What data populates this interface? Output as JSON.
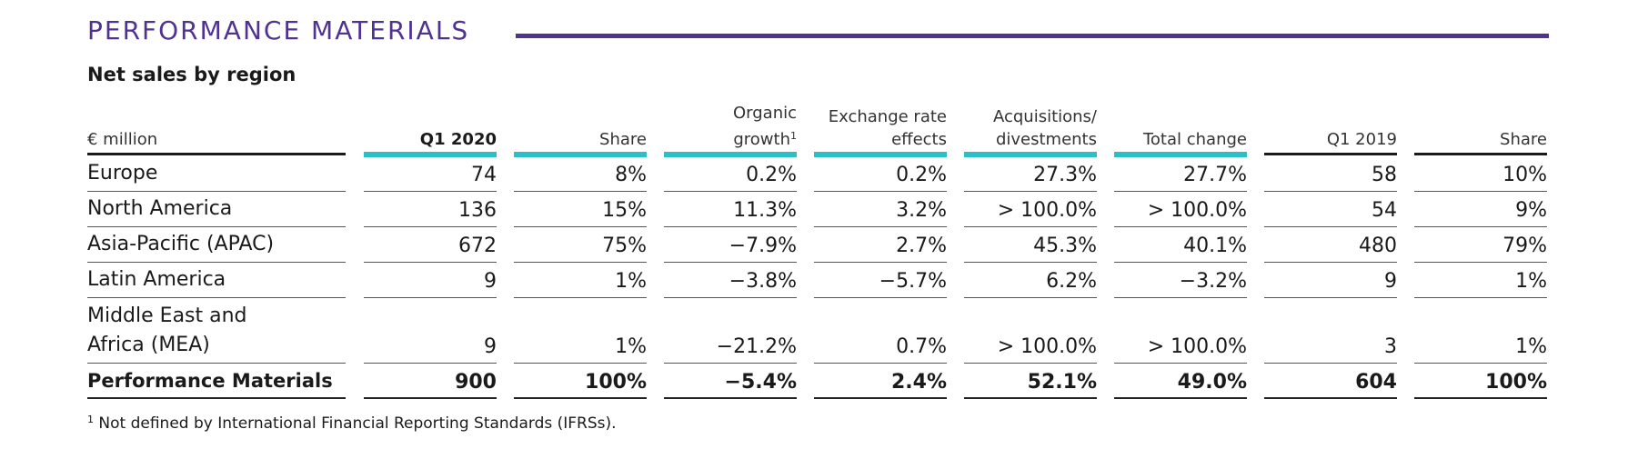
{
  "section_title": "PERFORMANCE MATERIALS",
  "subtitle": "Net sales by region",
  "columns": [
    {
      "lines": [
        "€ million"
      ],
      "sup": ""
    },
    {
      "lines": [
        "Q1 2020"
      ],
      "sup": ""
    },
    {
      "lines": [
        "Share"
      ],
      "sup": ""
    },
    {
      "lines": [
        "Organic",
        "growth"
      ],
      "sup": "1"
    },
    {
      "lines": [
        "Exchange rate",
        "effects"
      ],
      "sup": ""
    },
    {
      "lines": [
        "Acquisitions/",
        "divestments"
      ],
      "sup": ""
    },
    {
      "lines": [
        "Total change"
      ],
      "sup": ""
    },
    {
      "lines": [
        "Q1 2019"
      ],
      "sup": ""
    },
    {
      "lines": [
        "Share"
      ],
      "sup": ""
    }
  ],
  "rows": [
    {
      "label": [
        "Europe"
      ],
      "values": [
        "74",
        "8%",
        "0.2%",
        "0.2%",
        "27.3%",
        "27.7%",
        "58",
        "10%"
      ]
    },
    {
      "label": [
        "North America"
      ],
      "values": [
        "136",
        "15%",
        "11.3%",
        "3.2%",
        "> 100.0%",
        "> 100.0%",
        "54",
        "9%"
      ]
    },
    {
      "label": [
        "Asia-Pacific (APAC)"
      ],
      "values": [
        "672",
        "75%",
        "−7.9%",
        "2.7%",
        "45.3%",
        "40.1%",
        "480",
        "79%"
      ]
    },
    {
      "label": [
        "Latin America"
      ],
      "values": [
        "9",
        "1%",
        "−3.8%",
        "−5.7%",
        "6.2%",
        "−3.2%",
        "9",
        "1%"
      ]
    },
    {
      "label": [
        "Middle East and",
        "Africa (MEA)"
      ],
      "values": [
        "9",
        "1%",
        "−21.2%",
        "0.7%",
        "> 100.0%",
        "> 100.0%",
        "3",
        "1%"
      ]
    }
  ],
  "total_row": {
    "label": [
      "Performance Materials"
    ],
    "values": [
      "900",
      "100%",
      "−5.4%",
      "2.4%",
      "52.1%",
      "49.0%",
      "604",
      "100%"
    ]
  },
  "footnote": {
    "marker": "1",
    "text": "Not defined by International Financial Reporting Standards (IFRSs)."
  },
  "colors": {
    "brand_purple": "#503291",
    "accent_teal": "#2cbfc9",
    "text": "#1a1a1a"
  }
}
